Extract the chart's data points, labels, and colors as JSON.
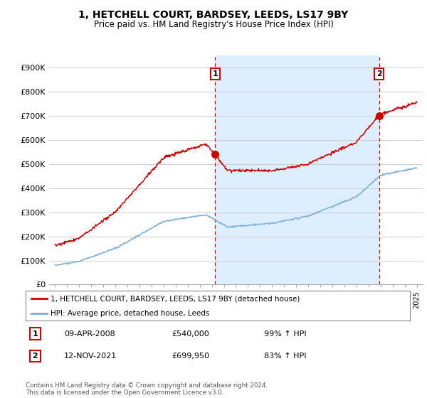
{
  "title": "1, HETCHELL COURT, BARDSEY, LEEDS, LS17 9BY",
  "subtitle": "Price paid vs. HM Land Registry's House Price Index (HPI)",
  "yticks": [
    0,
    100000,
    200000,
    300000,
    400000,
    500000,
    600000,
    700000,
    800000,
    900000
  ],
  "ytick_labels": [
    "£0",
    "£100K",
    "£200K",
    "£300K",
    "£400K",
    "£500K",
    "£600K",
    "£700K",
    "£800K",
    "£900K"
  ],
  "sale1_date_label": "09-APR-2008",
  "sale1_price": 540000,
  "sale1_price_label": "£540,000",
  "sale1_hpi_label": "99% ↑ HPI",
  "sale1_year": 2008.27,
  "sale2_date_label": "12-NOV-2021",
  "sale2_price": 699950,
  "sale2_price_label": "£699,950",
  "sale2_hpi_label": "83% ↑ HPI",
  "sale2_year": 2021.87,
  "legend_line1": "1, HETCHELL COURT, BARDSEY, LEEDS, LS17 9BY (detached house)",
  "legend_line2": "HPI: Average price, detached house, Leeds",
  "footnote": "Contains HM Land Registry data © Crown copyright and database right 2024.\nThis data is licensed under the Open Government Licence v3.0.",
  "line_color_red": "#cc0000",
  "line_color_blue": "#7aaedb",
  "shade_color": "#ddeeff",
  "bg_color": "#ffffff",
  "grid_color": "#cccccc",
  "title_fontsize": 10,
  "subtitle_fontsize": 8.5,
  "tick_fontsize": 8
}
